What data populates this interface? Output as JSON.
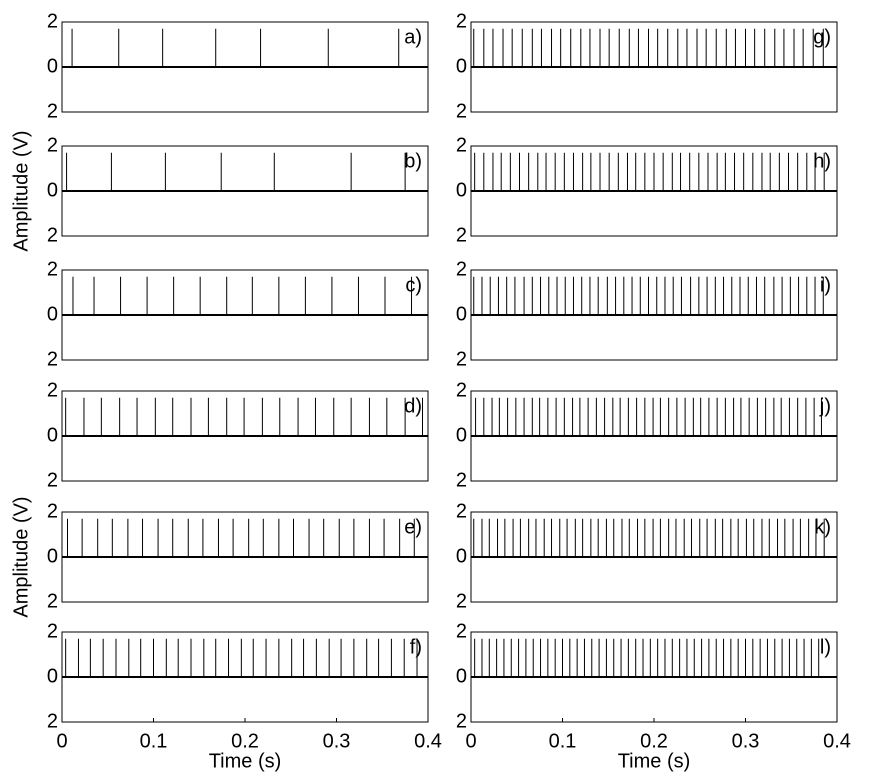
{
  "chart_data": [
    {
      "type": "spike",
      "label": "a)",
      "xlim": [
        0,
        0.4
      ],
      "ylim": [
        -2,
        2
      ],
      "yticks": [
        2,
        0,
        {
          "value": -2,
          "label": "2"
        }
      ],
      "x": [
        0.011,
        0.062,
        0.11,
        0.168,
        0.217,
        0.291,
        0.368
      ],
      "values": [
        1.7,
        1.7,
        1.7,
        1.7,
        1.7,
        1.7,
        1.7
      ]
    },
    {
      "type": "spike",
      "label": "b)",
      "ylabel": "Amplitude (V)",
      "xlim": [
        0,
        0.4
      ],
      "ylim": [
        -2,
        2
      ],
      "yticks": [
        2,
        0,
        {
          "value": -2,
          "label": "2"
        }
      ],
      "x": [
        0.005,
        0.054,
        0.113,
        0.174,
        0.232,
        0.316,
        0.375
      ],
      "values": [
        1.7,
        1.7,
        1.7,
        1.7,
        1.7,
        1.7,
        1.7
      ]
    },
    {
      "type": "spike",
      "label": "c)",
      "xlim": [
        0,
        0.4
      ],
      "ylim": [
        -2,
        2
      ],
      "yticks": [
        2,
        0,
        {
          "value": -2,
          "label": "2"
        }
      ],
      "x": [
        0.012,
        0.035,
        0.064,
        0.093,
        0.122,
        0.151,
        0.18,
        0.208,
        0.237,
        0.266,
        0.295,
        0.324,
        0.353,
        0.382
      ],
      "values": [
        1.7,
        1.7,
        1.7,
        1.7,
        1.7,
        1.7,
        1.7,
        1.7,
        1.7,
        1.7,
        1.7,
        1.7,
        1.7,
        1.7
      ]
    },
    {
      "type": "spike",
      "label": "d)",
      "xlim": [
        0,
        0.4
      ],
      "ylim": [
        -2,
        2
      ],
      "yticks": [
        2,
        0,
        {
          "value": -2,
          "label": "2"
        }
      ],
      "x": [
        0.004,
        0.024,
        0.043,
        0.063,
        0.082,
        0.102,
        0.121,
        0.141,
        0.16,
        0.18,
        0.199,
        0.219,
        0.238,
        0.258,
        0.277,
        0.297,
        0.316,
        0.336,
        0.355,
        0.375,
        0.394
      ],
      "values": [
        1.7,
        1.7,
        1.7,
        1.7,
        1.7,
        1.7,
        1.7,
        1.7,
        1.7,
        1.7,
        1.7,
        1.7,
        1.7,
        1.7,
        1.7,
        1.7,
        1.7,
        1.7,
        1.7,
        1.7,
        1.7
      ]
    },
    {
      "type": "spike",
      "label": "e)",
      "ylabel": "Amplitude (V)",
      "xlim": [
        0,
        0.4
      ],
      "ylim": [
        -2,
        2
      ],
      "yticks": [
        2,
        0,
        {
          "value": -2,
          "label": "2"
        }
      ],
      "x": [
        0.006,
        0.022,
        0.039,
        0.055,
        0.072,
        0.088,
        0.105,
        0.121,
        0.138,
        0.154,
        0.171,
        0.187,
        0.204,
        0.22,
        0.237,
        0.253,
        0.27,
        0.286,
        0.303,
        0.319,
        0.336,
        0.352,
        0.369,
        0.385
      ],
      "values": [
        1.7,
        1.7,
        1.7,
        1.7,
        1.7,
        1.7,
        1.7,
        1.7,
        1.7,
        1.7,
        1.7,
        1.7,
        1.7,
        1.7,
        1.7,
        1.7,
        1.7,
        1.7,
        1.7,
        1.7,
        1.7,
        1.7,
        1.7,
        1.7
      ]
    },
    {
      "type": "spike",
      "label": "f)",
      "xlabel": "Time (s)",
      "xlim": [
        0,
        0.4
      ],
      "xticks": [
        0,
        0.1,
        0.2,
        0.3,
        0.4
      ],
      "ylim": [
        -2,
        2
      ],
      "yticks": [
        2,
        0,
        {
          "value": -2,
          "label": "2"
        }
      ],
      "x": [
        0.004,
        0.018,
        0.031,
        0.045,
        0.059,
        0.073,
        0.086,
        0.1,
        0.114,
        0.127,
        0.141,
        0.155,
        0.168,
        0.182,
        0.196,
        0.209,
        0.223,
        0.237,
        0.251,
        0.264,
        0.278,
        0.292,
        0.305,
        0.319,
        0.333,
        0.346,
        0.36,
        0.374,
        0.388
      ],
      "values": [
        1.7,
        1.7,
        1.7,
        1.7,
        1.7,
        1.7,
        1.7,
        1.7,
        1.7,
        1.7,
        1.7,
        1.7,
        1.7,
        1.7,
        1.7,
        1.7,
        1.7,
        1.7,
        1.7,
        1.7,
        1.7,
        1.7,
        1.7,
        1.7,
        1.7,
        1.7,
        1.7,
        1.7,
        1.7
      ]
    },
    {
      "type": "spike",
      "label": "g)",
      "xlim": [
        0,
        0.4
      ],
      "ylim": [
        -2,
        2
      ],
      "yticks": [
        2,
        0,
        {
          "value": -2,
          "label": "2"
        }
      ],
      "x": [
        0.003,
        0.014,
        0.024,
        0.035,
        0.045,
        0.056,
        0.067,
        0.077,
        0.088,
        0.098,
        0.109,
        0.12,
        0.13,
        0.141,
        0.151,
        0.162,
        0.173,
        0.183,
        0.194,
        0.204,
        0.215,
        0.226,
        0.236,
        0.247,
        0.257,
        0.268,
        0.279,
        0.289,
        0.3,
        0.31,
        0.321,
        0.332,
        0.342,
        0.353,
        0.363,
        0.374,
        0.385
      ],
      "values": [
        1.7,
        1.7,
        1.7,
        1.7,
        1.7,
        1.7,
        1.7,
        1.7,
        1.7,
        1.7,
        1.7,
        1.7,
        1.7,
        1.7,
        1.7,
        1.7,
        1.7,
        1.7,
        1.7,
        1.7,
        1.7,
        1.7,
        1.7,
        1.7,
        1.7,
        1.7,
        1.7,
        1.7,
        1.7,
        1.7,
        1.7,
        1.7,
        1.7,
        1.7,
        1.7,
        1.7,
        1.7
      ]
    },
    {
      "type": "spike",
      "label": "h)",
      "xlim": [
        0,
        0.4
      ],
      "ylim": [
        -2,
        2
      ],
      "yticks": [
        2,
        0,
        {
          "value": -2,
          "label": "2"
        }
      ],
      "x": [
        0.004,
        0.014,
        0.024,
        0.033,
        0.043,
        0.053,
        0.063,
        0.073,
        0.082,
        0.092,
        0.102,
        0.112,
        0.122,
        0.131,
        0.141,
        0.151,
        0.161,
        0.171,
        0.18,
        0.19,
        0.2,
        0.21,
        0.22,
        0.229,
        0.239,
        0.249,
        0.259,
        0.269,
        0.278,
        0.288,
        0.298,
        0.308,
        0.318,
        0.327,
        0.337,
        0.347,
        0.357,
        0.367,
        0.376,
        0.386
      ],
      "values": [
        1.7,
        1.7,
        1.7,
        1.7,
        1.7,
        1.7,
        1.7,
        1.7,
        1.7,
        1.7,
        1.7,
        1.7,
        1.7,
        1.7,
        1.7,
        1.7,
        1.7,
        1.7,
        1.7,
        1.7,
        1.7,
        1.7,
        1.7,
        1.7,
        1.7,
        1.7,
        1.7,
        1.7,
        1.7,
        1.7,
        1.7,
        1.7,
        1.7,
        1.7,
        1.7,
        1.7,
        1.7,
        1.7,
        1.7,
        1.7
      ]
    },
    {
      "type": "spike",
      "label": "i)",
      "xlim": [
        0,
        0.4
      ],
      "ylim": [
        -2,
        2
      ],
      "yticks": [
        2,
        0,
        {
          "value": -2,
          "label": "2"
        }
      ],
      "x": [
        0.003,
        0.012,
        0.021,
        0.03,
        0.039,
        0.048,
        0.058,
        0.067,
        0.076,
        0.085,
        0.094,
        0.103,
        0.112,
        0.121,
        0.13,
        0.139,
        0.149,
        0.158,
        0.167,
        0.176,
        0.185,
        0.194,
        0.203,
        0.212,
        0.221,
        0.23,
        0.24,
        0.249,
        0.258,
        0.267,
        0.276,
        0.285,
        0.294,
        0.303,
        0.312,
        0.321,
        0.331,
        0.34,
        0.349,
        0.358,
        0.367,
        0.376,
        0.385
      ],
      "values": [
        1.7,
        1.7,
        1.7,
        1.7,
        1.7,
        1.7,
        1.7,
        1.7,
        1.7,
        1.7,
        1.7,
        1.7,
        1.7,
        1.7,
        1.7,
        1.7,
        1.7,
        1.7,
        1.7,
        1.7,
        1.7,
        1.7,
        1.7,
        1.7,
        1.7,
        1.7,
        1.7,
        1.7,
        1.7,
        1.7,
        1.7,
        1.7,
        1.7,
        1.7,
        1.7,
        1.7,
        1.7,
        1.7,
        1.7,
        1.7,
        1.7,
        1.7,
        1.7
      ]
    },
    {
      "type": "spike",
      "label": "j)",
      "xlim": [
        0,
        0.4
      ],
      "ylim": [
        -2,
        2
      ],
      "yticks": [
        2,
        0,
        {
          "value": -2,
          "label": "2"
        }
      ],
      "x": [
        0.005,
        0.014,
        0.023,
        0.031,
        0.04,
        0.049,
        0.058,
        0.067,
        0.075,
        0.084,
        0.093,
        0.102,
        0.111,
        0.119,
        0.128,
        0.137,
        0.146,
        0.155,
        0.163,
        0.172,
        0.181,
        0.19,
        0.199,
        0.207,
        0.216,
        0.225,
        0.234,
        0.243,
        0.251,
        0.26,
        0.269,
        0.278,
        0.287,
        0.295,
        0.304,
        0.313,
        0.322,
        0.331,
        0.339,
        0.348,
        0.357,
        0.366,
        0.375,
        0.383
      ],
      "values": [
        1.7,
        1.7,
        1.7,
        1.7,
        1.7,
        1.7,
        1.7,
        1.7,
        1.7,
        1.7,
        1.7,
        1.7,
        1.7,
        1.7,
        1.7,
        1.7,
        1.7,
        1.7,
        1.7,
        1.7,
        1.7,
        1.7,
        1.7,
        1.7,
        1.7,
        1.7,
        1.7,
        1.7,
        1.7,
        1.7,
        1.7,
        1.7,
        1.7,
        1.7,
        1.7,
        1.7,
        1.7,
        1.7,
        1.7,
        1.7,
        1.7,
        1.7,
        1.7,
        1.7
      ]
    },
    {
      "type": "spike",
      "label": "k)",
      "xlim": [
        0,
        0.4
      ],
      "ylim": [
        -2,
        2
      ],
      "yticks": [
        2,
        0,
        {
          "value": -2,
          "label": "2"
        }
      ],
      "x": [
        0.003,
        0.012,
        0.02,
        0.029,
        0.037,
        0.046,
        0.054,
        0.063,
        0.071,
        0.08,
        0.088,
        0.097,
        0.105,
        0.114,
        0.122,
        0.131,
        0.139,
        0.148,
        0.156,
        0.165,
        0.173,
        0.182,
        0.19,
        0.199,
        0.207,
        0.216,
        0.224,
        0.233,
        0.241,
        0.25,
        0.258,
        0.267,
        0.275,
        0.284,
        0.292,
        0.301,
        0.309,
        0.318,
        0.326,
        0.335,
        0.343,
        0.352,
        0.36,
        0.369,
        0.377,
        0.386
      ],
      "values": [
        1.7,
        1.7,
        1.7,
        1.7,
        1.7,
        1.7,
        1.7,
        1.7,
        1.7,
        1.7,
        1.7,
        1.7,
        1.7,
        1.7,
        1.7,
        1.7,
        1.7,
        1.7,
        1.7,
        1.7,
        1.7,
        1.7,
        1.7,
        1.7,
        1.7,
        1.7,
        1.7,
        1.7,
        1.7,
        1.7,
        1.7,
        1.7,
        1.7,
        1.7,
        1.7,
        1.7,
        1.7,
        1.7,
        1.7,
        1.7,
        1.7,
        1.7,
        1.7,
        1.7,
        1.7,
        1.7
      ]
    },
    {
      "type": "spike",
      "label": "l)",
      "xlabel": "Time (s)",
      "xlim": [
        0,
        0.4
      ],
      "xticks": [
        0,
        0.1,
        0.2,
        0.3,
        0.4
      ],
      "ylim": [
        -2,
        2
      ],
      "yticks": [
        2,
        0,
        {
          "value": -2,
          "label": "2"
        }
      ],
      "x": [
        0.004,
        0.012,
        0.02,
        0.028,
        0.036,
        0.044,
        0.052,
        0.06,
        0.068,
        0.076,
        0.084,
        0.092,
        0.1,
        0.108,
        0.116,
        0.124,
        0.132,
        0.14,
        0.148,
        0.156,
        0.164,
        0.172,
        0.18,
        0.188,
        0.196,
        0.204,
        0.212,
        0.22,
        0.228,
        0.236,
        0.244,
        0.252,
        0.26,
        0.268,
        0.276,
        0.284,
        0.292,
        0.3,
        0.308,
        0.316,
        0.324,
        0.332,
        0.34,
        0.348,
        0.356,
        0.364,
        0.372,
        0.38
      ],
      "values": [
        1.7,
        1.7,
        1.7,
        1.7,
        1.7,
        1.7,
        1.7,
        1.7,
        1.7,
        1.7,
        1.7,
        1.7,
        1.7,
        1.7,
        1.7,
        1.7,
        1.7,
        1.7,
        1.7,
        1.7,
        1.7,
        1.7,
        1.7,
        1.7,
        1.7,
        1.7,
        1.7,
        1.7,
        1.7,
        1.7,
        1.7,
        1.7,
        1.7,
        1.7,
        1.7,
        1.7,
        1.7,
        1.7,
        1.7,
        1.7,
        1.7,
        1.7,
        1.7,
        1.7,
        1.7,
        1.7,
        1.7,
        1.7
      ]
    }
  ]
}
